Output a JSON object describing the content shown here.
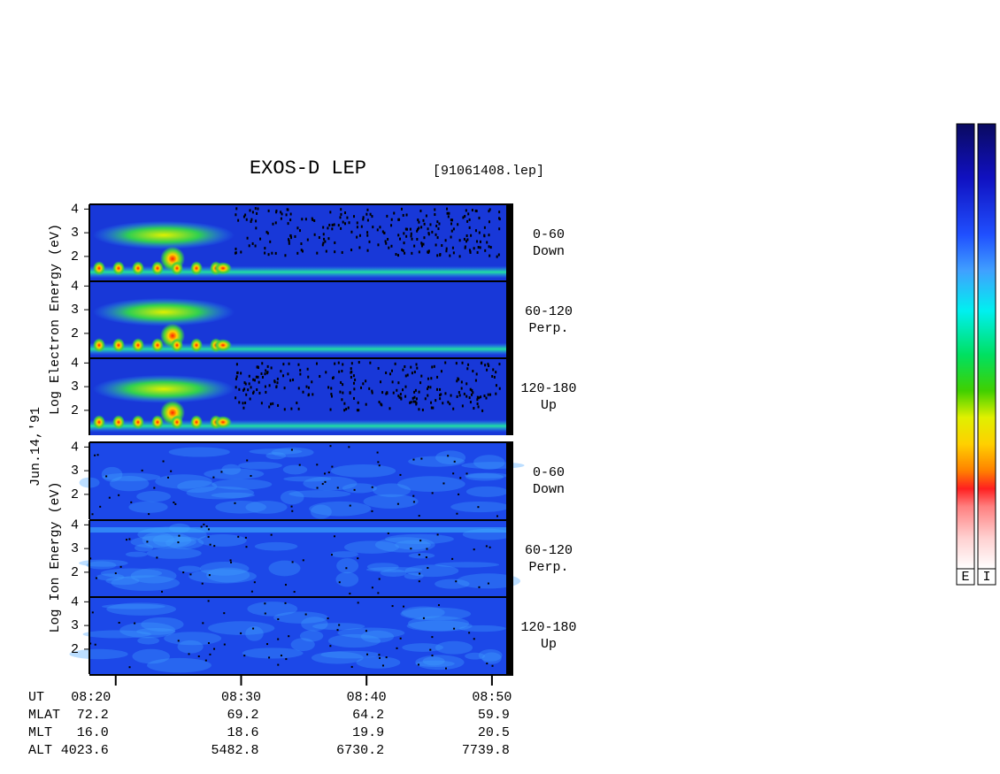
{
  "title": "EXOS-D LEP",
  "file": "[91061408.lep]",
  "date": "Jun.14,'91",
  "ylim": [
    0.95,
    4.2
  ],
  "yticks": [
    2,
    3,
    4
  ],
  "xlim": [
    17.9,
    51.7
  ],
  "xticks": [
    {
      "value": 20,
      "label": "08:20"
    },
    {
      "value": 30,
      "label": "08:30"
    },
    {
      "value": 40,
      "label": "08:40"
    },
    {
      "value": 50,
      "label": "08:50"
    }
  ],
  "groups": [
    {
      "label": "Log  Electron  Energy (eV)",
      "panels": [
        {
          "pitch": "0-60",
          "dir": "Down"
        },
        {
          "pitch": "60-120",
          "dir": "Perp."
        },
        {
          "pitch": "120-180",
          "dir": "Up"
        }
      ]
    },
    {
      "label": "Log  Ion  Energy (eV)",
      "panels": [
        {
          "pitch": "0-60",
          "dir": "Down"
        },
        {
          "pitch": "60-120",
          "dir": "Perp."
        },
        {
          "pitch": "120-180",
          "dir": "Up"
        }
      ]
    }
  ],
  "orbit": [
    {
      "name": "MLAT",
      "values": [
        "72.2",
        "69.2",
        "64.2",
        "59.9"
      ]
    },
    {
      "name": "MLT",
      "values": [
        "16.0",
        "18.6",
        "19.9",
        "20.5"
      ]
    },
    {
      "name": "ALT",
      "values": [
        "4023.6",
        "5482.8",
        "6730.2",
        "7739.8"
      ]
    }
  ],
  "ut_label": "UT",
  "colorbars": [
    "E",
    "I"
  ]
}
